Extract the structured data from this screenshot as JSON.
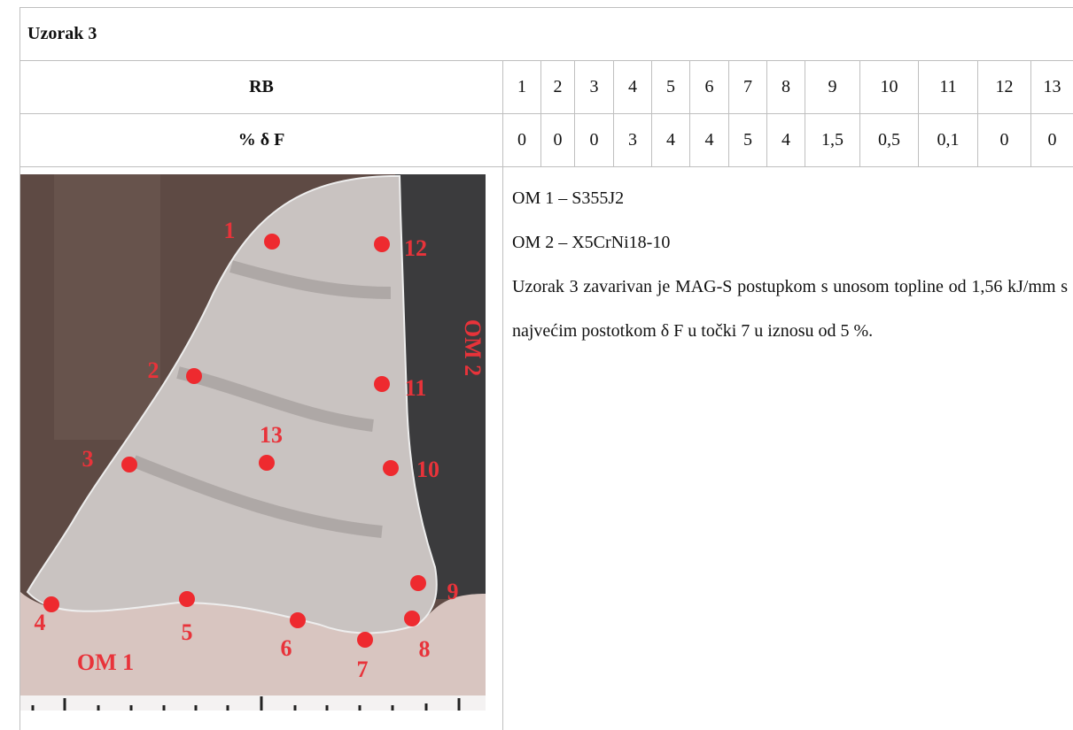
{
  "title": "Uzorak 3",
  "table": {
    "rows": [
      {
        "label": "RB",
        "cells": [
          "1",
          "2",
          "3",
          "4",
          "5",
          "6",
          "7",
          "8",
          "9",
          "10",
          "11",
          "12",
          "13"
        ]
      },
      {
        "label": "% δ F",
        "cells": [
          "0",
          "0",
          "0",
          "3",
          "4",
          "4",
          "5",
          "4",
          "1,5",
          "0,5",
          "0,1",
          "0",
          "0"
        ]
      }
    ]
  },
  "figure": {
    "points": [
      "1",
      "2",
      "3",
      "4",
      "5",
      "6",
      "7",
      "8",
      "9",
      "10",
      "11",
      "12",
      "13"
    ],
    "om1": "OM 1",
    "om2": "OM 2"
  },
  "description": {
    "materials": [
      "OM 1 – S355J2",
      "OM 2 – X5CrNi18-10"
    ],
    "text": "Uzorak 3 zavarivan je MAG-S postupkom s unosom topline od 1,56 kJ/mm s najvećim postotkom δ F u točki 7 u iznosu od 5 %."
  }
}
